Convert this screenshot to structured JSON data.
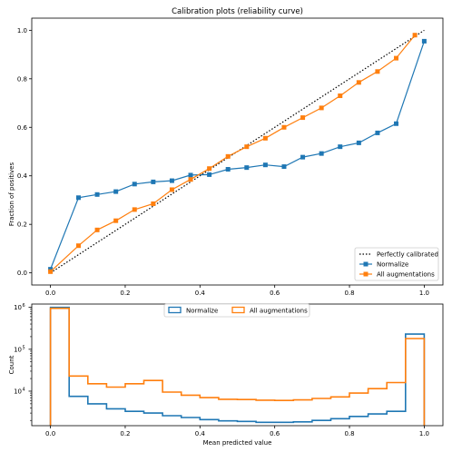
{
  "chart_data": [
    {
      "type": "line",
      "title": "Calibration plots  (reliability curve)",
      "xlabel": "",
      "ylabel": "Fraction of positives",
      "xlim": [
        -0.05,
        1.05
      ],
      "ylim": [
        -0.05,
        1.05
      ],
      "xticks": [
        "0.0",
        "0.2",
        "0.4",
        "0.6",
        "0.8",
        "1.0"
      ],
      "yticks": [
        "0.0",
        "0.2",
        "0.4",
        "0.6",
        "0.8",
        "1.0"
      ],
      "legend_position": "lower-right",
      "reference": {
        "name": "Perfectly calibrated",
        "x": [
          0,
          1
        ],
        "y": [
          0,
          1
        ],
        "style": "dotted",
        "color": "#000000"
      },
      "series": [
        {
          "name": "Normalize",
          "color": "#1f77b4",
          "marker": "square",
          "x": [
            0.0,
            0.075,
            0.125,
            0.175,
            0.225,
            0.275,
            0.325,
            0.375,
            0.425,
            0.475,
            0.525,
            0.575,
            0.625,
            0.675,
            0.725,
            0.775,
            0.825,
            0.875,
            0.925,
            1.0
          ],
          "y": [
            0.015,
            0.31,
            0.323,
            0.335,
            0.366,
            0.375,
            0.38,
            0.403,
            0.405,
            0.427,
            0.434,
            0.445,
            0.438,
            0.477,
            0.492,
            0.52,
            0.536,
            0.577,
            0.615,
            0.955
          ]
        },
        {
          "name": "All augmentations",
          "color": "#ff7f0e",
          "marker": "square",
          "x": [
            0.0,
            0.075,
            0.125,
            0.175,
            0.225,
            0.275,
            0.325,
            0.375,
            0.425,
            0.475,
            0.525,
            0.575,
            0.625,
            0.675,
            0.725,
            0.775,
            0.825,
            0.875,
            0.925,
            0.975
          ],
          "y": [
            0.005,
            0.112,
            0.177,
            0.215,
            0.261,
            0.285,
            0.343,
            0.385,
            0.43,
            0.48,
            0.52,
            0.555,
            0.6,
            0.64,
            0.68,
            0.73,
            0.785,
            0.83,
            0.885,
            0.98
          ]
        }
      ]
    },
    {
      "type": "step-histogram",
      "title": "",
      "xlabel": "Mean predicted value",
      "ylabel": "Count",
      "xlim": [
        -0.05,
        1.05
      ],
      "ylim": [
        1500,
        1200000
      ],
      "yscale": "log",
      "xticks": [
        "0.0",
        "0.2",
        "0.4",
        "0.6",
        "0.8",
        "1.0"
      ],
      "yticks": [
        {
          "value": 10000,
          "base": "10",
          "exp": "4"
        },
        {
          "value": 100000,
          "base": "10",
          "exp": "5"
        },
        {
          "value": 1000000,
          "base": "10",
          "exp": "6"
        }
      ],
      "legend_position": "upper-center",
      "bin_edges": [
        0.0,
        0.05,
        0.1,
        0.15,
        0.2,
        0.25,
        0.3,
        0.35,
        0.4,
        0.45,
        0.5,
        0.55,
        0.6,
        0.65,
        0.7,
        0.75,
        0.8,
        0.85,
        0.9,
        0.95,
        1.0
      ],
      "series": [
        {
          "name": "Normalize",
          "color": "#1f77b4",
          "values": [
            1000000,
            7500,
            5000,
            3800,
            3300,
            3000,
            2600,
            2350,
            2100,
            1950,
            1900,
            1800,
            1800,
            1850,
            2000,
            2200,
            2500,
            2850,
            3300,
            230000
          ]
        },
        {
          "name": "All augmentations",
          "color": "#ff7f0e",
          "values": [
            950000,
            23000,
            15000,
            12500,
            15000,
            18000,
            9500,
            8000,
            7000,
            6400,
            6300,
            6100,
            6000,
            6200,
            6700,
            7300,
            9000,
            11500,
            16000,
            180000
          ]
        }
      ]
    }
  ]
}
